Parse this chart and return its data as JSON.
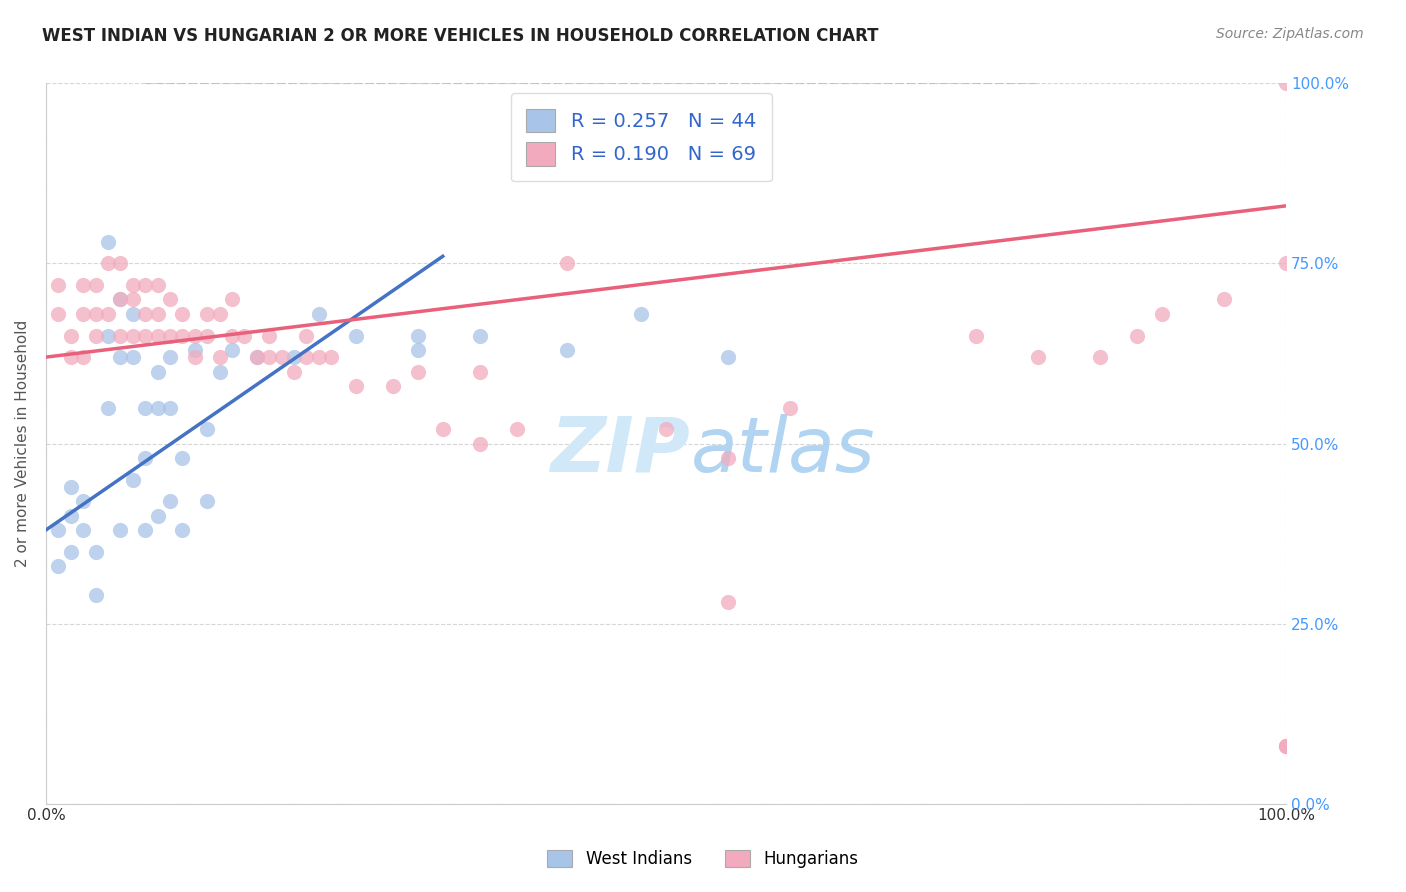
{
  "title": "WEST INDIAN VS HUNGARIAN 2 OR MORE VEHICLES IN HOUSEHOLD CORRELATION CHART",
  "source": "Source: ZipAtlas.com",
  "ylabel": "2 or more Vehicles in Household",
  "legend_blue_r": "R = 0.257",
  "legend_blue_n": "N = 44",
  "legend_pink_r": "R = 0.190",
  "legend_pink_n": "N = 69",
  "blue_scatter_color": "#A8C4E8",
  "pink_scatter_color": "#F2ABBE",
  "blue_line_color": "#4472C4",
  "pink_line_color": "#E8607A",
  "dashed_line_color": "#BBBBBB",
  "watermark_color": "#D0E8F8",
  "legend_west_indians": "West Indians",
  "legend_hungarians": "Hungarians",
  "blue_points_x": [
    1,
    1,
    2,
    2,
    2,
    3,
    3,
    4,
    4,
    5,
    5,
    5,
    6,
    6,
    6,
    7,
    7,
    7,
    8,
    8,
    8,
    9,
    9,
    9,
    10,
    10,
    10,
    11,
    11,
    12,
    13,
    13,
    14,
    15,
    17,
    20,
    22,
    25,
    30,
    30,
    35,
    42,
    48,
    55
  ],
  "blue_points_y": [
    33,
    38,
    35,
    40,
    44,
    38,
    42,
    29,
    35,
    55,
    78,
    65,
    38,
    62,
    70,
    45,
    62,
    68,
    38,
    48,
    55,
    40,
    55,
    60,
    42,
    55,
    62,
    38,
    48,
    63,
    42,
    52,
    60,
    63,
    62,
    62,
    68,
    65,
    63,
    65,
    65,
    63,
    68,
    62
  ],
  "pink_points_x": [
    1,
    1,
    2,
    2,
    3,
    3,
    3,
    4,
    4,
    4,
    5,
    5,
    6,
    6,
    6,
    7,
    7,
    7,
    8,
    8,
    8,
    9,
    9,
    9,
    10,
    10,
    11,
    11,
    12,
    12,
    13,
    13,
    14,
    14,
    15,
    15,
    16,
    17,
    18,
    18,
    19,
    20,
    21,
    21,
    22,
    23,
    25,
    28,
    30,
    32,
    35,
    35,
    38,
    42,
    50,
    55,
    55,
    60,
    75,
    80,
    85,
    88,
    90,
    95,
    100,
    100,
    100,
    100,
    100
  ],
  "pink_points_y": [
    68,
    72,
    62,
    65,
    62,
    68,
    72,
    65,
    68,
    72,
    68,
    75,
    65,
    70,
    75,
    65,
    70,
    72,
    65,
    68,
    72,
    65,
    68,
    72,
    65,
    70,
    65,
    68,
    62,
    65,
    65,
    68,
    62,
    68,
    65,
    70,
    65,
    62,
    62,
    65,
    62,
    60,
    62,
    65,
    62,
    62,
    58,
    58,
    60,
    52,
    50,
    60,
    52,
    75,
    52,
    48,
    28,
    55,
    65,
    62,
    62,
    65,
    68,
    70,
    8,
    8,
    8,
    75,
    100
  ],
  "blue_reg_x0": 0,
  "blue_reg_y0": 38,
  "blue_reg_x1": 32,
  "blue_reg_y1": 76,
  "pink_reg_x0": 0,
  "pink_reg_y0": 62,
  "pink_reg_x1": 100,
  "pink_reg_y1": 83,
  "dash_x0": 8,
  "dash_y0": 100,
  "dash_x1": 80,
  "dash_y1": 100,
  "xlim": [
    0,
    100
  ],
  "ylim": [
    0,
    100
  ],
  "xtick_positions": [
    0,
    100
  ],
  "xtick_labels": [
    "0.0%",
    "100.0%"
  ],
  "ytick_positions": [
    0,
    25,
    50,
    75,
    100
  ],
  "ytick_labels": [
    "0.0%",
    "25.0%",
    "50.0%",
    "75.0%",
    "100.0%"
  ]
}
